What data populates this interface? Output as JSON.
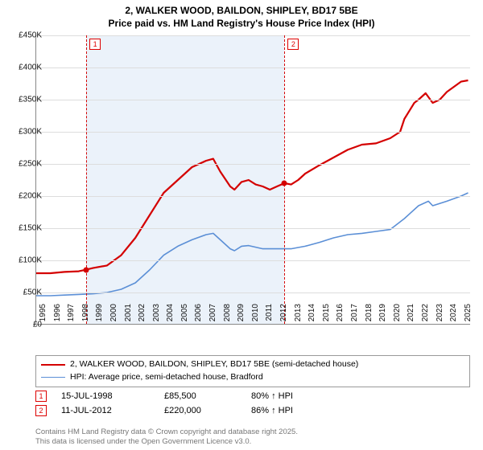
{
  "title_line1": "2, WALKER WOOD, BAILDON, SHIPLEY, BD17 5BE",
  "title_line2": "Price paid vs. HM Land Registry's House Price Index (HPI)",
  "chart": {
    "type": "line",
    "x_start": 1995,
    "x_end": 2025.7,
    "xticks": [
      1995,
      1996,
      1997,
      1998,
      1999,
      2000,
      2001,
      2002,
      2003,
      2004,
      2005,
      2006,
      2007,
      2008,
      2009,
      2010,
      2011,
      2012,
      2013,
      2014,
      2015,
      2016,
      2017,
      2018,
      2019,
      2020,
      2021,
      2022,
      2023,
      2024,
      2025
    ],
    "y_min": 0,
    "y_max": 450000,
    "ytick_step": 50000,
    "ylabels": [
      "£0",
      "£50K",
      "£100K",
      "£150K",
      "£200K",
      "£250K",
      "£300K",
      "£350K",
      "£400K",
      "£450K"
    ],
    "background_color": "#ffffff",
    "shade_color": "#dbe7f5",
    "grid_color": "#dddddd",
    "shade_start": 1998.53,
    "shade_end": 2012.53,
    "series": {
      "price": {
        "color": "#d40000",
        "width": 2.2,
        "label": "2, WALKER WOOD, BAILDON, SHIPLEY, BD17 5BE (semi-detached house)",
        "points": [
          [
            1995,
            80000
          ],
          [
            1996,
            80000
          ],
          [
            1997,
            82000
          ],
          [
            1998,
            83000
          ],
          [
            1998.53,
            85500
          ],
          [
            1999,
            88000
          ],
          [
            2000,
            92000
          ],
          [
            2001,
            108000
          ],
          [
            2002,
            135000
          ],
          [
            2003,
            170000
          ],
          [
            2004,
            205000
          ],
          [
            2005,
            225000
          ],
          [
            2006,
            245000
          ],
          [
            2007,
            255000
          ],
          [
            2007.5,
            258000
          ],
          [
            2008,
            238000
          ],
          [
            2008.7,
            215000
          ],
          [
            2009,
            210000
          ],
          [
            2009.5,
            222000
          ],
          [
            2010,
            225000
          ],
          [
            2010.5,
            218000
          ],
          [
            2011,
            215000
          ],
          [
            2011.5,
            210000
          ],
          [
            2012,
            215000
          ],
          [
            2012.53,
            220000
          ],
          [
            2013,
            218000
          ],
          [
            2013.5,
            225000
          ],
          [
            2014,
            235000
          ],
          [
            2015,
            248000
          ],
          [
            2016,
            260000
          ],
          [
            2017,
            272000
          ],
          [
            2018,
            280000
          ],
          [
            2019,
            282000
          ],
          [
            2020,
            290000
          ],
          [
            2020.7,
            300000
          ],
          [
            2021,
            320000
          ],
          [
            2021.7,
            345000
          ],
          [
            2022,
            350000
          ],
          [
            2022.5,
            360000
          ],
          [
            2023,
            345000
          ],
          [
            2023.5,
            350000
          ],
          [
            2024,
            362000
          ],
          [
            2024.5,
            370000
          ],
          [
            2025,
            378000
          ],
          [
            2025.5,
            380000
          ]
        ]
      },
      "hpi": {
        "color": "#5b8fd6",
        "width": 1.6,
        "label": "HPI: Average price, semi-detached house, Bradford",
        "points": [
          [
            1995,
            45000
          ],
          [
            1996,
            45000
          ],
          [
            1997,
            46000
          ],
          [
            1998,
            47000
          ],
          [
            1999,
            48000
          ],
          [
            2000,
            50000
          ],
          [
            2001,
            55000
          ],
          [
            2002,
            65000
          ],
          [
            2003,
            85000
          ],
          [
            2004,
            108000
          ],
          [
            2005,
            122000
          ],
          [
            2006,
            132000
          ],
          [
            2007,
            140000
          ],
          [
            2007.5,
            142000
          ],
          [
            2008,
            132000
          ],
          [
            2008.7,
            118000
          ],
          [
            2009,
            115000
          ],
          [
            2009.5,
            122000
          ],
          [
            2010,
            123000
          ],
          [
            2011,
            118000
          ],
          [
            2012,
            118000
          ],
          [
            2013,
            118000
          ],
          [
            2014,
            122000
          ],
          [
            2015,
            128000
          ],
          [
            2016,
            135000
          ],
          [
            2017,
            140000
          ],
          [
            2018,
            142000
          ],
          [
            2019,
            145000
          ],
          [
            2020,
            148000
          ],
          [
            2021,
            165000
          ],
          [
            2022,
            185000
          ],
          [
            2022.7,
            192000
          ],
          [
            2023,
            185000
          ],
          [
            2024,
            192000
          ],
          [
            2025,
            200000
          ],
          [
            2025.5,
            205000
          ]
        ]
      }
    },
    "markers": [
      {
        "n": "1",
        "x": 1998.53,
        "y": 85500,
        "color": "#d40000"
      },
      {
        "n": "2",
        "x": 2012.53,
        "y": 220000,
        "color": "#d40000"
      }
    ]
  },
  "legend": {
    "border_color": "#999999"
  },
  "sales": [
    {
      "n": "1",
      "date": "15-JUL-1998",
      "price": "£85,500",
      "vs": "80% ↑ HPI"
    },
    {
      "n": "2",
      "date": "11-JUL-2012",
      "price": "£220,000",
      "vs": "86% ↑ HPI"
    }
  ],
  "footer_line1": "Contains HM Land Registry data © Crown copyright and database right 2025.",
  "footer_line2": "This data is licensed under the Open Government Licence v3.0."
}
